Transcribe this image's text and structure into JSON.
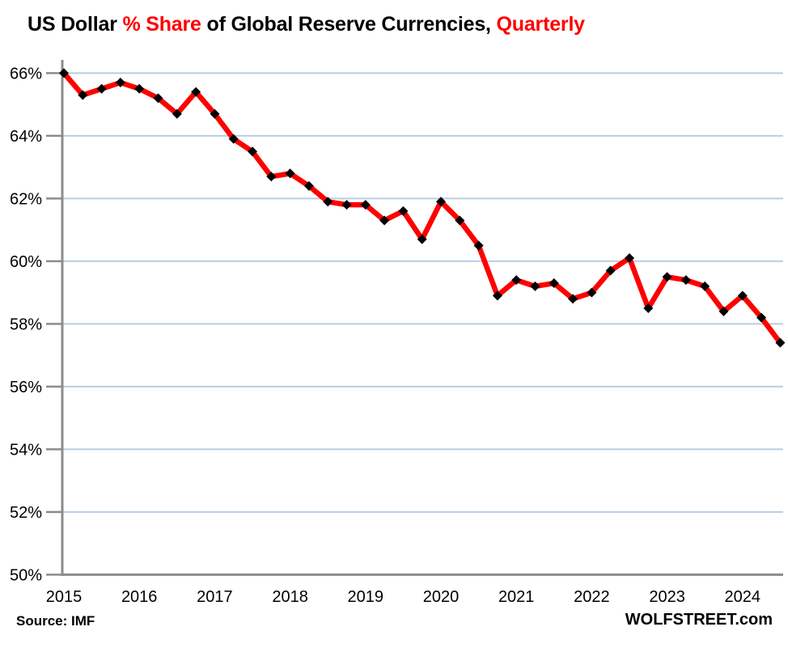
{
  "title": {
    "part1": "US Dollar ",
    "part2": "% Share",
    "part3": " of Global Reserve Currencies, ",
    "part4": "Quarterly"
  },
  "footer": {
    "source": "Source: IMF",
    "brand": "WOLFSTREET.com"
  },
  "colors": {
    "line": "#ff0000",
    "marker": "#000000",
    "grid": "#b9cde4",
    "axis": "#8c8c8c",
    "title_accent": "#ff0000",
    "text": "#000000"
  },
  "chart_data": {
    "type": "line",
    "title": "US Dollar % Share of Global Reserve Currencies, Quarterly",
    "xlabel": "",
    "ylabel": "",
    "ylim": [
      50,
      66
    ],
    "ytick_step": 2,
    "ytick_suffix": "%",
    "grid": true,
    "legend_position": "none",
    "x_year_labels": [
      "2015",
      "2016",
      "2017",
      "2018",
      "2019",
      "2020",
      "2021",
      "2022",
      "2023",
      "2024"
    ],
    "x": [
      "2015 Q1",
      "2015 Q2",
      "2015 Q3",
      "2015 Q4",
      "2016 Q1",
      "2016 Q2",
      "2016 Q3",
      "2016 Q4",
      "2017 Q1",
      "2017 Q2",
      "2017 Q3",
      "2017 Q4",
      "2018 Q1",
      "2018 Q2",
      "2018 Q3",
      "2018 Q4",
      "2019 Q1",
      "2019 Q2",
      "2019 Q3",
      "2019 Q4",
      "2020 Q1",
      "2020 Q2",
      "2020 Q3",
      "2020 Q4",
      "2021 Q1",
      "2021 Q2",
      "2021 Q3",
      "2021 Q4",
      "2022 Q1",
      "2022 Q2",
      "2022 Q3",
      "2022 Q4",
      "2023 Q1",
      "2023 Q2",
      "2023 Q3",
      "2023 Q4",
      "2024 Q1",
      "2024 Q2",
      "2024 Q3"
    ],
    "series": [
      {
        "name": "US Dollar % share of global reserve currencies",
        "color": "#ff0000",
        "marker": "diamond",
        "marker_color": "#000000",
        "values": [
          66.0,
          65.3,
          65.5,
          65.7,
          65.5,
          65.2,
          64.7,
          65.4,
          64.7,
          63.9,
          63.5,
          62.7,
          62.8,
          62.4,
          61.9,
          61.8,
          61.8,
          61.3,
          61.6,
          60.7,
          61.9,
          61.3,
          60.5,
          58.9,
          59.4,
          59.2,
          59.3,
          58.8,
          59.0,
          59.7,
          60.1,
          58.5,
          59.5,
          59.4,
          59.2,
          58.4,
          58.9,
          58.2,
          57.4
        ]
      }
    ]
  }
}
